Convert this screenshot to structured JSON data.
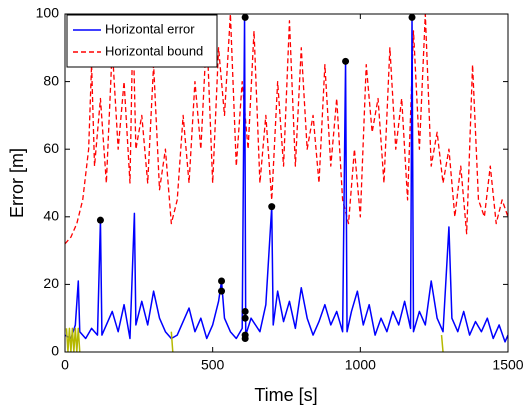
{
  "chart_data": {
    "type": "line",
    "xlabel": "Time [s]",
    "ylabel": "Error [m]",
    "xlim": [
      0,
      1500
    ],
    "ylim": [
      0,
      100
    ],
    "xticks": [
      0,
      500,
      1000,
      1500
    ],
    "yticks": [
      0,
      20,
      40,
      60,
      80,
      100
    ],
    "grid": false,
    "legend_position": "upper-left",
    "series": [
      {
        "name": "Horizontal error",
        "type": "line",
        "color": "#0000ff",
        "dash": "solid",
        "x": [
          0,
          20,
          35,
          45,
          50,
          70,
          90,
          110,
          120,
          125,
          140,
          160,
          180,
          200,
          220,
          235,
          240,
          260,
          280,
          300,
          320,
          340,
          360,
          380,
          400,
          420,
          440,
          460,
          480,
          500,
          520,
          530,
          540,
          560,
          580,
          600,
          608,
          612,
          630,
          660,
          680,
          700,
          705,
          720,
          740,
          760,
          780,
          800,
          820,
          840,
          860,
          880,
          900,
          920,
          940,
          950,
          955,
          970,
          990,
          1010,
          1030,
          1050,
          1070,
          1090,
          1110,
          1130,
          1150,
          1170,
          1175,
          1180,
          1200,
          1220,
          1240,
          1260,
          1280,
          1300,
          1310,
          1330,
          1350,
          1370,
          1390,
          1410,
          1430,
          1450,
          1470,
          1490,
          1500
        ],
        "values": [
          5,
          4,
          8,
          21,
          6,
          4,
          7,
          5,
          39,
          5,
          8,
          12,
          6,
          14,
          4,
          41,
          8,
          15,
          8,
          18,
          10,
          6,
          4,
          5,
          9,
          13,
          6,
          10,
          4,
          8,
          15,
          21,
          10,
          6,
          4,
          7,
          99,
          5,
          10,
          6,
          14,
          43,
          8,
          18,
          9,
          15,
          7,
          19,
          10,
          5,
          9,
          14,
          8,
          12,
          6,
          86,
          6,
          12,
          18,
          8,
          14,
          5,
          10,
          6,
          12,
          8,
          15,
          7,
          99,
          6,
          12,
          8,
          21,
          10,
          6,
          37,
          10,
          6,
          12,
          5,
          9,
          6,
          10,
          4,
          8,
          3,
          5
        ]
      },
      {
        "name": "Horizontal bound",
        "type": "line",
        "color": "#ff0000",
        "dash": "dashed",
        "x": [
          0,
          20,
          40,
          60,
          80,
          90,
          100,
          120,
          140,
          160,
          180,
          200,
          220,
          230,
          240,
          260,
          280,
          300,
          320,
          340,
          360,
          380,
          400,
          420,
          440,
          460,
          480,
          500,
          520,
          540,
          560,
          580,
          600,
          620,
          640,
          660,
          680,
          700,
          720,
          740,
          760,
          780,
          800,
          820,
          840,
          860,
          880,
          900,
          920,
          940,
          960,
          980,
          1000,
          1020,
          1040,
          1060,
          1080,
          1100,
          1120,
          1140,
          1160,
          1180,
          1200,
          1220,
          1240,
          1260,
          1280,
          1300,
          1320,
          1340,
          1360,
          1380,
          1400,
          1420,
          1440,
          1460,
          1480,
          1500
        ],
        "values": [
          32,
          34,
          38,
          45,
          60,
          85,
          55,
          75,
          50,
          90,
          60,
          80,
          50,
          98,
          60,
          70,
          50,
          85,
          48,
          60,
          38,
          45,
          70,
          50,
          80,
          60,
          95,
          50,
          90,
          70,
          100,
          55,
          80,
          60,
          95,
          50,
          70,
          45,
          80,
          55,
          98,
          55,
          90,
          60,
          70,
          50,
          85,
          55,
          75,
          45,
          38,
          60,
          40,
          85,
          65,
          75,
          50,
          90,
          60,
          75,
          45,
          95,
          60,
          100,
          55,
          65,
          50,
          60,
          40,
          55,
          35,
          85,
          45,
          40,
          55,
          38,
          45,
          40
        ]
      },
      {
        "type": "scatter",
        "color": "#000000",
        "x": [
          120,
          530,
          530,
          610,
          610,
          610,
          610,
          610,
          700,
          950,
          1175
        ],
        "values": [
          39,
          18,
          21,
          99,
          12,
          10,
          5,
          4,
          43,
          86,
          99
        ]
      },
      {
        "type": "line",
        "color": "#b5b800",
        "dash": "solid",
        "x": [
          5,
          10,
          15,
          20,
          25,
          30,
          35,
          40,
          45,
          50,
          355,
          360,
          365,
          1270,
          1275,
          1280
        ],
        "values": [
          7,
          0,
          7,
          0,
          7,
          0,
          7,
          0,
          7,
          0,
          null,
          6,
          0,
          null,
          5,
          0
        ]
      }
    ]
  }
}
